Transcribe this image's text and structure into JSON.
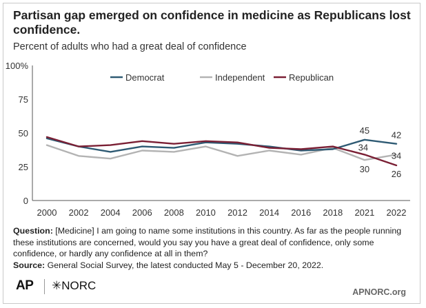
{
  "title": "Partisan gap emerged on confidence in medicine as Republicans lost confidence.",
  "subtitle": "Percent of adults who had a great deal of confidence",
  "note": {
    "question_label": "Question:",
    "question_text": "[Medicine] I am going to name some institutions in this country. As far as the people running these institutions are concerned, would you say you have a great deal of confidence, only some confidence, or hardly any confidence at all in them?",
    "source_label": "Source:",
    "source_text": "General Social Survey, the latest conducted May 5 - December 20, 2022."
  },
  "logos": {
    "ap": "AP",
    "norc": "NORC",
    "site": "APNORC.org"
  },
  "chart_data": {
    "type": "line",
    "categories": [
      "2000",
      "2002",
      "2004",
      "2006",
      "2008",
      "2010",
      "2012",
      "2014",
      "2016",
      "2018",
      "2021",
      "2022"
    ],
    "y_ticks": [
      "100%",
      "75",
      "50",
      "25",
      "0"
    ],
    "ylim": [
      0,
      100
    ],
    "grid": false,
    "legend": "top",
    "series": [
      {
        "name": "Democrat",
        "color": "#2e5a73",
        "values": [
          46,
          40,
          36,
          40,
          39,
          43,
          42,
          40,
          37,
          38,
          45,
          42
        ]
      },
      {
        "name": "Independent",
        "color": "#b3b3b3",
        "values": [
          41,
          33,
          31,
          37,
          36,
          40,
          33,
          37,
          34,
          39,
          30,
          34
        ]
      },
      {
        "name": "Republican",
        "color": "#7a1f34",
        "values": [
          47,
          40,
          41,
          44,
          42,
          44,
          43,
          39,
          38,
          40,
          34,
          26
        ]
      }
    ],
    "data_labels": [
      {
        "series": "Democrat",
        "category": "2021",
        "text": "45"
      },
      {
        "series": "Democrat",
        "category": "2022",
        "text": "42"
      },
      {
        "series": "Independent",
        "category": "2021",
        "text": "30"
      },
      {
        "series": "Independent",
        "category": "2022",
        "text": "34"
      },
      {
        "series": "Republican",
        "category": "2021",
        "text": "34"
      },
      {
        "series": "Republican",
        "category": "2022",
        "text": "26"
      }
    ]
  }
}
